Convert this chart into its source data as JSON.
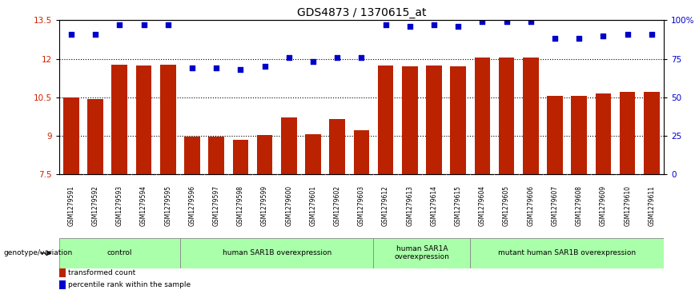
{
  "title": "GDS4873 / 1370615_at",
  "samples": [
    "GSM1279591",
    "GSM1279592",
    "GSM1279593",
    "GSM1279594",
    "GSM1279595",
    "GSM1279596",
    "GSM1279597",
    "GSM1279598",
    "GSM1279599",
    "GSM1279600",
    "GSM1279601",
    "GSM1279602",
    "GSM1279603",
    "GSM1279612",
    "GSM1279613",
    "GSM1279614",
    "GSM1279615",
    "GSM1279604",
    "GSM1279605",
    "GSM1279606",
    "GSM1279607",
    "GSM1279608",
    "GSM1279609",
    "GSM1279610",
    "GSM1279611"
  ],
  "bar_values": [
    10.48,
    10.44,
    11.78,
    11.73,
    11.78,
    8.96,
    8.96,
    8.84,
    9.02,
    9.7,
    9.05,
    9.65,
    9.2,
    11.75,
    11.7,
    11.75,
    11.7,
    12.05,
    12.05,
    12.05,
    10.55,
    10.55,
    10.65,
    10.7,
    10.72
  ],
  "dot_values": [
    91,
    91,
    97,
    97,
    97,
    69,
    69,
    68,
    70,
    76,
    73,
    76,
    76,
    97,
    96,
    97,
    96,
    99,
    99,
    99,
    88,
    88,
    90,
    91,
    91
  ],
  "ylim_left": [
    7.5,
    13.5
  ],
  "ylim_right": [
    0,
    100
  ],
  "yticks_left": [
    7.5,
    9.0,
    10.5,
    12.0,
    13.5
  ],
  "ytick_labels_left": [
    "7.5",
    "9",
    "10.5",
    "12",
    "13.5"
  ],
  "yticks_right": [
    0,
    25,
    50,
    75,
    100
  ],
  "ytick_labels_right": [
    "0",
    "25",
    "50",
    "75",
    "100%"
  ],
  "bar_color": "#bb2200",
  "dot_color": "#0000cc",
  "groups": [
    {
      "label": "control",
      "start": 0,
      "end": 4
    },
    {
      "label": "human SAR1B overexpression",
      "start": 5,
      "end": 12
    },
    {
      "label": "human SAR1A\noverexpression",
      "start": 13,
      "end": 16
    },
    {
      "label": "mutant human SAR1B overexpression",
      "start": 17,
      "end": 24
    }
  ],
  "group_color": "#aaffaa",
  "legend_items": [
    {
      "color": "#bb2200",
      "label": "transformed count"
    },
    {
      "color": "#0000cc",
      "label": "percentile rank within the sample"
    }
  ],
  "genotype_label": "genotype/variation",
  "title_fontsize": 10,
  "axis_label_color_left": "#cc2200",
  "axis_label_color_right": "#0000cc",
  "tick_bg_color": "#c8c8c8"
}
